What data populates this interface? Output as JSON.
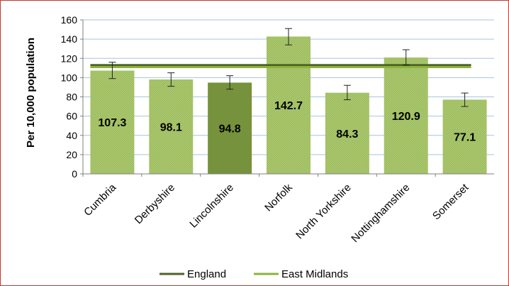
{
  "chart_data": {
    "type": "bar",
    "ylabel": "Per 10,000 population",
    "ylim": [
      0,
      160
    ],
    "yticks": [
      0,
      20,
      40,
      60,
      80,
      100,
      120,
      140,
      160
    ],
    "grid": true,
    "categories": [
      "Cumbria",
      "Derbyshire",
      "Lincolnshire",
      "Norfolk",
      "North Yorkshire",
      "Nottinghamshire",
      "Somerset"
    ],
    "values": [
      107.3,
      98.1,
      94.8,
      142.7,
      84.3,
      120.9,
      77.1
    ],
    "data_labels": [
      "107.3",
      "98.1",
      "94.8",
      "142.7",
      "84.3",
      "120.9",
      "77.1"
    ],
    "error_bars": [
      {
        "low": 99,
        "high": 116
      },
      {
        "low": 91,
        "high": 105
      },
      {
        "low": 88,
        "high": 102
      },
      {
        "low": 134,
        "high": 151
      },
      {
        "low": 77,
        "high": 92
      },
      {
        "low": 113,
        "high": 129
      },
      {
        "low": 70,
        "high": 84
      }
    ],
    "highlight_category": "Lincolnshire",
    "reference_lines": [
      {
        "name": "England",
        "value": 113,
        "color": "#4f6228"
      },
      {
        "name": "East Midlands",
        "value": 111,
        "color": "#8db33a"
      }
    ],
    "colors": {
      "bar": "#9bbb59",
      "bar_highlight": "#76923c",
      "grid": "#a6c4e0",
      "frame_border": "#c0392b"
    },
    "legend_position": "bottom"
  }
}
